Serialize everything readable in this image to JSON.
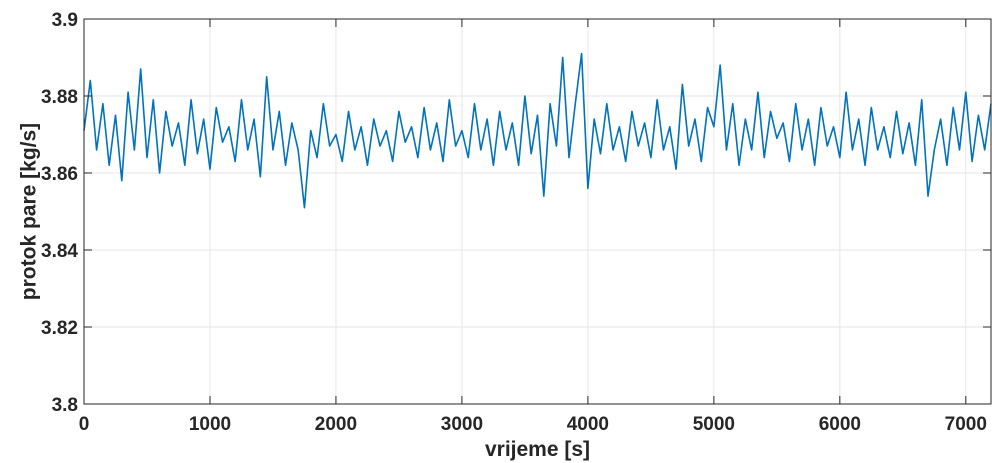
{
  "chart_data": {
    "type": "line",
    "title": "",
    "xlabel": "vrijeme [s]",
    "ylabel": "protok pare [kg/s]",
    "xlim": [
      0,
      7200
    ],
    "ylim": [
      3.8,
      3.9
    ],
    "xticks": [
      0,
      1000,
      2000,
      3000,
      4000,
      5000,
      6000,
      7000
    ],
    "xtick_labels": [
      "0",
      "1000",
      "2000",
      "3000",
      "4000",
      "5000",
      "6000",
      "7000"
    ],
    "yticks": [
      3.8,
      3.82,
      3.84,
      3.86,
      3.88,
      3.9
    ],
    "ytick_labels": [
      "3.8",
      "3.82",
      "3.84",
      "3.86",
      "3.88",
      "3.9"
    ],
    "grid": true,
    "series": [
      {
        "color": "#0072bd",
        "x": [
          0,
          50,
          100,
          150,
          200,
          250,
          300,
          350,
          400,
          450,
          500,
          550,
          600,
          650,
          700,
          750,
          800,
          850,
          900,
          950,
          1000,
          1050,
          1100,
          1150,
          1200,
          1250,
          1300,
          1350,
          1400,
          1450,
          1500,
          1550,
          1600,
          1650,
          1700,
          1750,
          1800,
          1850,
          1900,
          1950,
          2000,
          2050,
          2100,
          2150,
          2200,
          2250,
          2300,
          2350,
          2400,
          2450,
          2500,
          2550,
          2600,
          2650,
          2700,
          2750,
          2800,
          2850,
          2900,
          2950,
          3000,
          3050,
          3100,
          3150,
          3200,
          3250,
          3300,
          3350,
          3400,
          3450,
          3500,
          3550,
          3600,
          3650,
          3700,
          3750,
          3800,
          3850,
          3900,
          3950,
          4000,
          4050,
          4100,
          4150,
          4200,
          4250,
          4300,
          4350,
          4400,
          4450,
          4500,
          4550,
          4600,
          4650,
          4700,
          4750,
          4800,
          4850,
          4900,
          4950,
          5000,
          5050,
          5100,
          5150,
          5200,
          5250,
          5300,
          5350,
          5400,
          5450,
          5500,
          5550,
          5600,
          5650,
          5700,
          5750,
          5800,
          5850,
          5900,
          5950,
          6000,
          6050,
          6100,
          6150,
          6200,
          6250,
          6300,
          6350,
          6400,
          6450,
          6500,
          6550,
          6600,
          6650,
          6700,
          6750,
          6800,
          6850,
          6900,
          6950,
          7000,
          7050,
          7100,
          7150,
          7200
        ],
        "y": [
          3.871,
          3.884,
          3.866,
          3.878,
          3.862,
          3.875,
          3.858,
          3.881,
          3.866,
          3.887,
          3.864,
          3.879,
          3.86,
          3.876,
          3.867,
          3.873,
          3.862,
          3.879,
          3.865,
          3.874,
          3.861,
          3.877,
          3.868,
          3.872,
          3.863,
          3.879,
          3.866,
          3.874,
          3.859,
          3.885,
          3.866,
          3.876,
          3.862,
          3.873,
          3.866,
          3.851,
          3.871,
          3.864,
          3.878,
          3.867,
          3.87,
          3.863,
          3.876,
          3.866,
          3.872,
          3.862,
          3.874,
          3.867,
          3.871,
          3.863,
          3.876,
          3.868,
          3.872,
          3.864,
          3.877,
          3.866,
          3.873,
          3.863,
          3.879,
          3.867,
          3.871,
          3.864,
          3.878,
          3.866,
          3.874,
          3.862,
          3.876,
          3.866,
          3.873,
          3.862,
          3.88,
          3.865,
          3.875,
          3.854,
          3.878,
          3.867,
          3.89,
          3.864,
          3.878,
          3.891,
          3.856,
          3.874,
          3.865,
          3.878,
          3.866,
          3.872,
          3.863,
          3.876,
          3.867,
          3.873,
          3.864,
          3.879,
          3.866,
          3.872,
          3.861,
          3.883,
          3.867,
          3.874,
          3.863,
          3.877,
          3.872,
          3.888,
          3.866,
          3.878,
          3.862,
          3.874,
          3.866,
          3.881,
          3.864,
          3.876,
          3.869,
          3.873,
          3.863,
          3.878,
          3.866,
          3.874,
          3.862,
          3.877,
          3.867,
          3.872,
          3.864,
          3.881,
          3.866,
          3.874,
          3.862,
          3.877,
          3.866,
          3.872,
          3.864,
          3.876,
          3.865,
          3.873,
          3.862,
          3.879,
          3.854,
          3.866,
          3.874,
          3.862,
          3.877,
          3.866,
          3.881,
          3.863,
          3.875,
          3.866,
          3.878
        ]
      }
    ]
  }
}
